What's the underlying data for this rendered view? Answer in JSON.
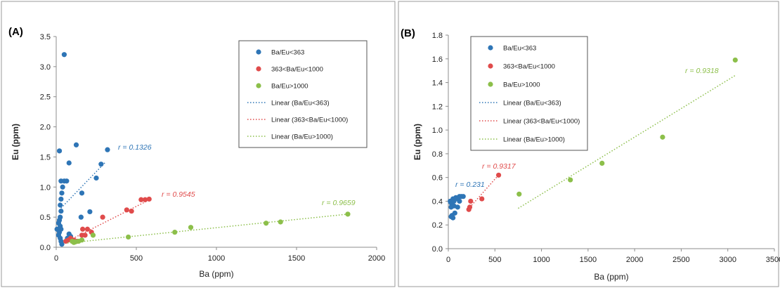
{
  "colors": {
    "blue": "#2e75b6",
    "red": "#e04b4b",
    "green": "#8cbf4a"
  },
  "chart_data": [
    {
      "type": "scatter",
      "panel_label": "(A)",
      "title": "",
      "xlabel": "Ba (ppm)",
      "ylabel": "Eu (ppm)",
      "xlim": [
        0,
        2000
      ],
      "ylim": [
        0,
        3.5
      ],
      "xticks": [
        0,
        500,
        1000,
        1500,
        2000
      ],
      "yticks": [
        0,
        0.5,
        1.0,
        1.5,
        2.0,
        2.5,
        3.0,
        3.5
      ],
      "ytick_labels": [
        "0.0",
        "0.5",
        "1.0",
        "1.5",
        "2.0",
        "2.5",
        "3.0",
        "3.5"
      ],
      "grid": false,
      "legend_position": "top-right",
      "legend": [
        "Ba/Eu<363",
        "363<Ba/Eu<1000",
        "Ba/Eu>1000",
        "Linear (Ba/Eu<363)",
        "Linear (363<Ba/Eu<1000)",
        "Linear (Ba/Eu>1000)"
      ],
      "series": [
        {
          "name": "Ba/Eu<363",
          "color": "#2e75b6",
          "points": [
            [
              50,
              3.2
            ],
            [
              20,
              1.6
            ],
            [
              125,
              1.7
            ],
            [
              320,
              1.62
            ],
            [
              80,
              1.4
            ],
            [
              280,
              1.38
            ],
            [
              30,
              1.1
            ],
            [
              50,
              1.1
            ],
            [
              65,
              1.1
            ],
            [
              250,
              1.15
            ],
            [
              40,
              1.0
            ],
            [
              35,
              0.9
            ],
            [
              160,
              0.9
            ],
            [
              30,
              0.8
            ],
            [
              210,
              0.59
            ],
            [
              25,
              0.7
            ],
            [
              30,
              0.6
            ],
            [
              25,
              0.5
            ],
            [
              20,
              0.45
            ],
            [
              155,
              0.5
            ],
            [
              15,
              0.4
            ],
            [
              25,
              0.35
            ],
            [
              5,
              0.3
            ],
            [
              30,
              0.3
            ],
            [
              20,
              0.25
            ],
            [
              15,
              0.2
            ],
            [
              80,
              0.22
            ],
            [
              25,
              0.15
            ],
            [
              30,
              0.1
            ],
            [
              35,
              0.05
            ],
            [
              70,
              0.15
            ],
            [
              90,
              0.18
            ]
          ],
          "fit": {
            "label": "r = 0.1326",
            "r": 0.1326,
            "from": [
              30,
              0.65
            ],
            "to": [
              310,
              1.42
            ]
          }
        },
        {
          "name": "363<Ba/Eu<1000",
          "color": "#e04b4b",
          "points": [
            [
              530,
              0.79
            ],
            [
              555,
              0.79
            ],
            [
              580,
              0.8
            ],
            [
              440,
              0.62
            ],
            [
              470,
              0.6
            ],
            [
              290,
              0.5
            ],
            [
              165,
              0.3
            ],
            [
              195,
              0.3
            ],
            [
              220,
              0.25
            ],
            [
              160,
              0.2
            ],
            [
              90,
              0.15
            ],
            [
              110,
              0.12
            ],
            [
              130,
              0.1
            ],
            [
              60,
              0.1
            ],
            [
              75,
              0.12
            ],
            [
              100,
              0.1
            ],
            [
              180,
              0.2
            ]
          ],
          "fit": {
            "label": "r = 0.9545",
            "r": 0.9545,
            "from": [
              55,
              0.08
            ],
            "to": [
              590,
              0.8
            ]
          }
        },
        {
          "name": "Ba/Eu>1000",
          "color": "#8cbf4a",
          "points": [
            [
              1820,
              0.55
            ],
            [
              1400,
              0.42
            ],
            [
              1310,
              0.4
            ],
            [
              840,
              0.33
            ],
            [
              740,
              0.25
            ],
            [
              450,
              0.17
            ],
            [
              230,
              0.2
            ],
            [
              160,
              0.12
            ],
            [
              140,
              0.1
            ],
            [
              120,
              0.09
            ],
            [
              100,
              0.1
            ],
            [
              110,
              0.08
            ]
          ],
          "fit": {
            "label": "r = 0.9659",
            "r": 0.9659,
            "from": [
              70,
              0.07
            ],
            "to": [
              1820,
              0.55
            ]
          }
        }
      ]
    },
    {
      "type": "scatter",
      "panel_label": "(B)",
      "title": "",
      "xlabel": "Ba (ppm)",
      "ylabel": "Eu (ppm)",
      "xlim": [
        0,
        3500
      ],
      "ylim": [
        0,
        1.8
      ],
      "xticks": [
        0,
        500,
        1000,
        1500,
        2000,
        2500,
        3000,
        3500
      ],
      "yticks": [
        0,
        0.2,
        0.4,
        0.6,
        0.8,
        1.0,
        1.2,
        1.4,
        1.6,
        1.8
      ],
      "ytick_labels": [
        "0.0",
        "0.2",
        "0.4",
        "0.6",
        "0.8",
        "1.0",
        "1.2",
        "1.4",
        "1.6",
        "1.8"
      ],
      "grid": false,
      "legend_position": "top-left",
      "legend": [
        "Ba/Eu<363",
        "363<Ba/Eu<1000",
        "Ba/Eu>1000",
        "Linear (Ba/Eu<363)",
        "Linear (363<Ba/Eu<1000)",
        "Linear (Ba/Eu>1000)"
      ],
      "series": [
        {
          "name": "Ba/Eu<363",
          "color": "#2e75b6",
          "points": [
            [
              20,
              0.4
            ],
            [
              35,
              0.38
            ],
            [
              50,
              0.42
            ],
            [
              60,
              0.4
            ],
            [
              80,
              0.43
            ],
            [
              100,
              0.42
            ],
            [
              120,
              0.44
            ],
            [
              140,
              0.44
            ],
            [
              160,
              0.44
            ],
            [
              30,
              0.35
            ],
            [
              60,
              0.36
            ],
            [
              100,
              0.35
            ],
            [
              40,
              0.28
            ],
            [
              70,
              0.3
            ],
            [
              30,
              0.27
            ],
            [
              50,
              0.26
            ],
            [
              120,
              0.4
            ]
          ],
          "fit": {
            "label": "r = 0.231",
            "r": 0.231,
            "from": [
              0,
              0.38
            ],
            "to": [
              160,
              0.45
            ]
          }
        },
        {
          "name": "363<Ba/Eu<1000",
          "color": "#e04b4b",
          "points": [
            [
              540,
              0.62
            ],
            [
              360,
              0.42
            ],
            [
              240,
              0.4
            ],
            [
              230,
              0.35
            ],
            [
              220,
              0.33
            ]
          ],
          "fit": {
            "label": "r = 0.9317",
            "r": 0.9317,
            "from": [
              210,
              0.33
            ],
            "to": [
              550,
              0.63
            ]
          }
        },
        {
          "name": "Ba/Eu>1000",
          "color": "#8cbf4a",
          "points": [
            [
              3080,
              1.59
            ],
            [
              2300,
              0.94
            ],
            [
              1650,
              0.72
            ],
            [
              1310,
              0.58
            ],
            [
              760,
              0.46
            ]
          ],
          "fit": {
            "label": "r = 0.9318",
            "r": 0.9318,
            "from": [
              750,
              0.34
            ],
            "to": [
              3080,
              1.46
            ]
          }
        }
      ]
    }
  ]
}
